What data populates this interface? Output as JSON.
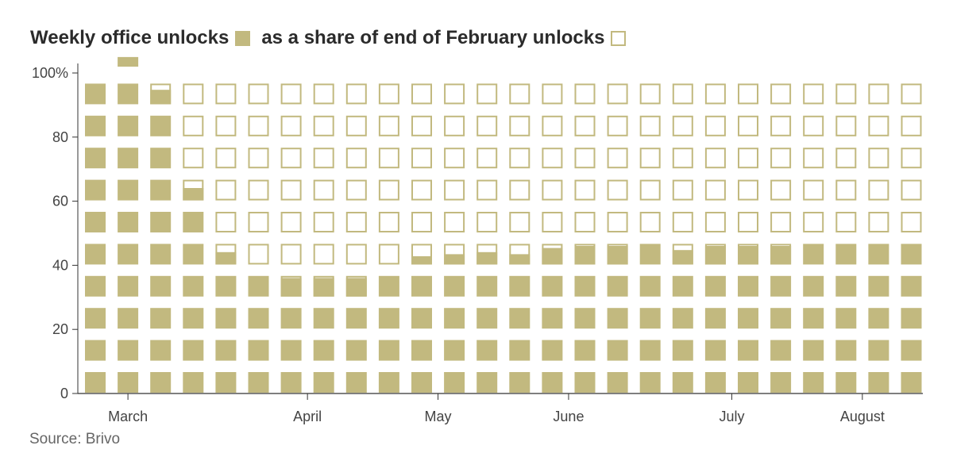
{
  "title": {
    "part1": "Weekly office unlocks",
    "part2": "as a share of end of February unlocks"
  },
  "source": "Source: Brivo",
  "colors": {
    "fill": "#c2b97f",
    "empty_border": "#c2b97f",
    "axis": "#333333"
  },
  "chart_data": {
    "type": "bar",
    "title": "Weekly office unlocks as a share of end of February unlocks",
    "xlabel": "",
    "ylabel": "",
    "ylim": [
      0,
      100
    ],
    "yticks": [
      {
        "value": 0,
        "label": "0"
      },
      {
        "value": 20,
        "label": "20"
      },
      {
        "value": 40,
        "label": "40"
      },
      {
        "value": 60,
        "label": "60"
      },
      {
        "value": 80,
        "label": "80"
      },
      {
        "value": 100,
        "label": "100%"
      }
    ],
    "month_labels": [
      {
        "label": "March",
        "week_index": 1
      },
      {
        "label": "April",
        "week_index": 6.5
      },
      {
        "label": "May",
        "week_index": 10.5
      },
      {
        "label": "June",
        "week_index": 14.5
      },
      {
        "label": "July",
        "week_index": 19.5
      },
      {
        "label": "August",
        "week_index": 23.5
      }
    ],
    "values": [
      100,
      103,
      97,
      66,
      46,
      40,
      39,
      39,
      39,
      40,
      44,
      45,
      46,
      45,
      48,
      49,
      49,
      50,
      47,
      49,
      49,
      49,
      50,
      50,
      50,
      50
    ]
  }
}
